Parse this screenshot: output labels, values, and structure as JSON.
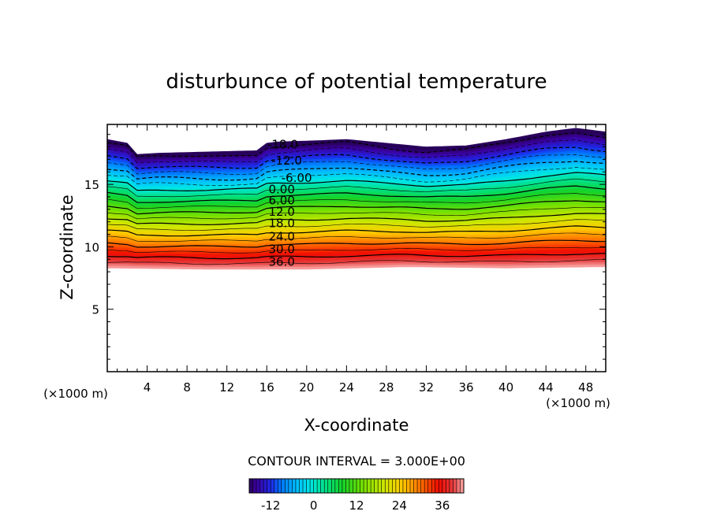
{
  "chart_data": {
    "type": "contour",
    "title": "disturbunce of potential temperature",
    "xlabel": "X-coordinate",
    "ylabel": "Z-coordinate",
    "x_unit": "(×1000 m)",
    "y_unit": "(×1000 m)",
    "xlim": [
      0,
      50
    ],
    "ylim": [
      0,
      19.8
    ],
    "x_ticks": [
      "4",
      "8",
      "12",
      "16",
      "20",
      "24",
      "28",
      "32",
      "36",
      "40",
      "44",
      "48"
    ],
    "y_ticks": [
      "5",
      "10",
      "15"
    ],
    "contour_interval_label": "CONTOUR INTERVAL = 3.000E+00",
    "contour_interval": 3.0,
    "contour_labels": [
      {
        "text": "-18.0",
        "x": 17.6,
        "z": 18.2
      },
      {
        "text": "-12.0",
        "x": 18.0,
        "z": 16.9
      },
      {
        "text": "-6.00",
        "x": 19.0,
        "z": 15.5
      },
      {
        "text": "0.00",
        "x": 17.5,
        "z": 14.6
      },
      {
        "text": "6.00",
        "x": 17.5,
        "z": 13.7
      },
      {
        "text": "12.0",
        "x": 17.5,
        "z": 12.8
      },
      {
        "text": "18.0",
        "x": 17.5,
        "z": 11.9
      },
      {
        "text": "24.0",
        "x": 17.5,
        "z": 10.8
      },
      {
        "text": "30.0",
        "x": 17.5,
        "z": 9.8
      },
      {
        "text": "36.0",
        "x": 17.5,
        "z": 8.8
      }
    ],
    "field_top_z": [
      [
        0,
        18.6
      ],
      [
        2,
        18.3
      ],
      [
        3,
        17.4
      ],
      [
        5,
        17.5
      ],
      [
        10,
        17.6
      ],
      [
        15,
        17.7
      ],
      [
        16,
        18.3
      ],
      [
        17,
        18.4
      ],
      [
        21,
        18.5
      ],
      [
        24,
        18.6
      ],
      [
        28,
        18.3
      ],
      [
        32,
        18.0
      ],
      [
        36,
        18.1
      ],
      [
        40,
        18.6
      ],
      [
        44,
        19.2
      ],
      [
        47,
        19.5
      ],
      [
        50,
        19.2
      ]
    ],
    "field_bottom_z": [
      [
        0,
        8.3
      ],
      [
        10,
        8.2
      ],
      [
        20,
        8.2
      ],
      [
        30,
        8.4
      ],
      [
        40,
        8.3
      ],
      [
        50,
        8.4
      ]
    ],
    "colorbar": {
      "range": [
        -18,
        42
      ],
      "tick_labels": [
        "-12",
        "0",
        "12",
        "24",
        "36"
      ]
    },
    "grid": false,
    "legend": "colorbar-bottom"
  }
}
